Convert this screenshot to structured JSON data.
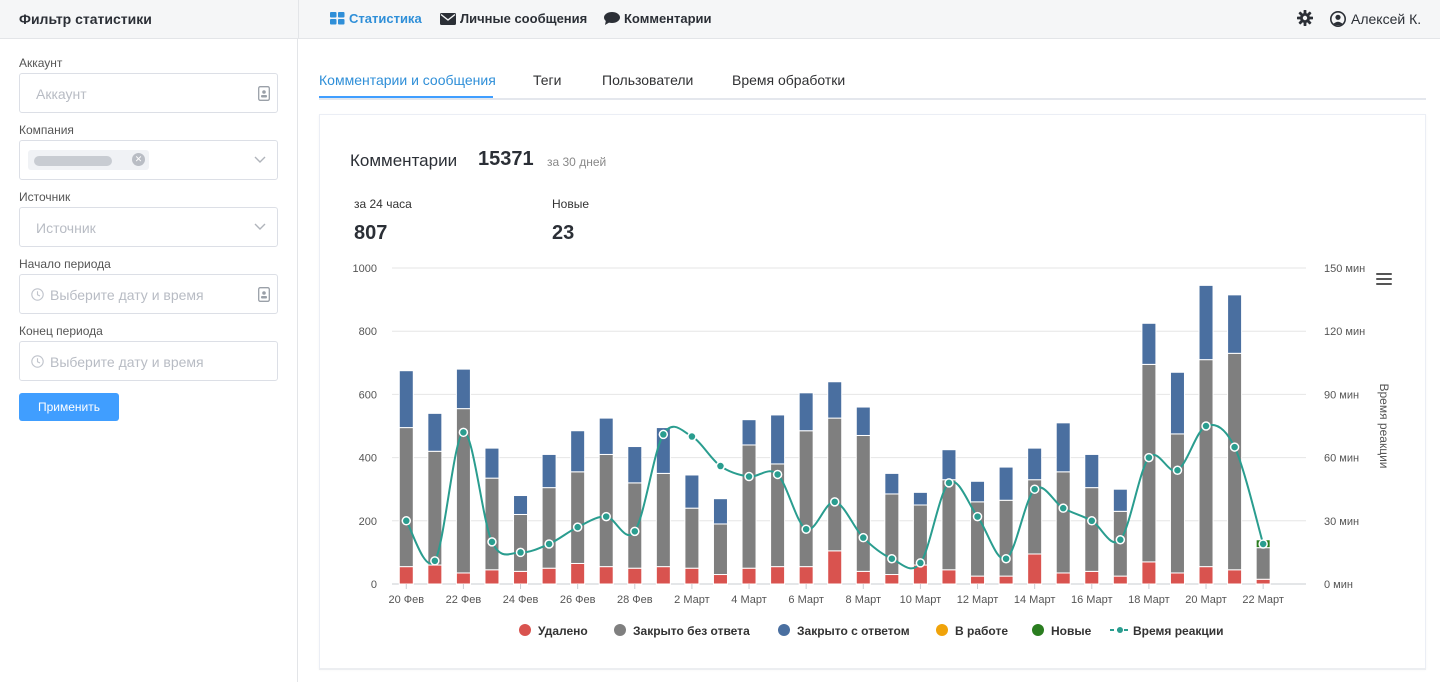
{
  "sidebar_title": "Фильтр статистики",
  "nav": {
    "items": [
      {
        "label": "Статистика",
        "icon": "grid-icon",
        "active": true
      },
      {
        "label": "Личные сообщения",
        "icon": "envelope-icon",
        "active": false
      },
      {
        "label": "Комментарии",
        "icon": "comment-icon",
        "active": false
      }
    ],
    "user_name": "Алексей К."
  },
  "filters": {
    "account": {
      "label": "Аккаунт",
      "placeholder": "Аккаунт"
    },
    "company": {
      "label": "Компания"
    },
    "source": {
      "label": "Источник",
      "placeholder": "Источник"
    },
    "start": {
      "label": "Начало периода",
      "placeholder": "Выберите дату и время"
    },
    "end": {
      "label": "Конец периода",
      "placeholder": "Выберите дату и время"
    },
    "apply_label": "Применить"
  },
  "tabs": [
    "Комментарии и сообщения",
    "Теги",
    "Пользователи",
    "Время обработки"
  ],
  "stats": {
    "title": "Комментарии",
    "total": "15371",
    "period": "за 30 дней",
    "day_label": "за 24 часа",
    "day_value": "807",
    "new_label": "Новые",
    "new_value": "23"
  },
  "colors": {
    "deleted": "#d9534f",
    "closed_no_reply": "#7f7f7f",
    "closed_reply": "#4a6fa0",
    "in_progress": "#f0a30a",
    "new": "#2a7d1f",
    "reaction": "#2a9d8f",
    "accent": "#409eff"
  },
  "chart_data": {
    "type": "bar",
    "stacked": true,
    "categories": [
      "20 Фев",
      "21 Фев",
      "22 Фев",
      "23 Фев",
      "24 Фев",
      "25 Фев",
      "26 Фев",
      "27 Фев",
      "28 Фев",
      "1 Март",
      "2 Март",
      "3 Март",
      "4 Март",
      "5 Март",
      "6 Март",
      "7 Март",
      "8 Март",
      "9 Март",
      "10 Март",
      "11 Март",
      "12 Март",
      "13 Март",
      "14 Март",
      "15 Март",
      "16 Март",
      "17 Март",
      "18 Март",
      "19 Март",
      "20 Март",
      "21 Март",
      "22 Март",
      "23 Март"
    ],
    "x_tick_labels": [
      "20 Фев",
      "22 Фев",
      "24 Фев",
      "26 Фев",
      "28 Фев",
      "2 Март",
      "4 Март",
      "6 Март",
      "8 Март",
      "10 Март",
      "12 Март",
      "14 Март",
      "16 Март",
      "18 Март",
      "20 Март",
      "22 Март"
    ],
    "y_ticks": [
      "0",
      "200",
      "400",
      "600",
      "800",
      "1000"
    ],
    "y2_ticks": [
      "0 мин",
      "30 мин",
      "60 мин",
      "90 мин",
      "120 мин",
      "150 мин"
    ],
    "ylim": [
      0,
      1000
    ],
    "y2lim": [
      0,
      150
    ],
    "y2label": "Время реакции",
    "series": [
      {
        "name": "Удалено",
        "type": "bar",
        "values": [
          55,
          60,
          35,
          45,
          40,
          50,
          65,
          55,
          50,
          55,
          50,
          30,
          50,
          55,
          55,
          105,
          40,
          30,
          60,
          45,
          25,
          25,
          95,
          35,
          40,
          25,
          70,
          35,
          55,
          45,
          15,
          0
        ]
      },
      {
        "name": "Закрыто без ответа",
        "type": "bar",
        "values": [
          440,
          360,
          520,
          290,
          180,
          255,
          290,
          355,
          270,
          295,
          190,
          160,
          390,
          325,
          430,
          420,
          430,
          255,
          190,
          285,
          235,
          240,
          235,
          320,
          265,
          205,
          625,
          440,
          655,
          685,
          100,
          0
        ]
      },
      {
        "name": "Закрыто с ответом",
        "type": "bar",
        "values": [
          180,
          120,
          125,
          95,
          60,
          105,
          130,
          115,
          115,
          145,
          105,
          80,
          80,
          155,
          120,
          115,
          90,
          65,
          40,
          95,
          65,
          105,
          100,
          155,
          105,
          70,
          130,
          195,
          235,
          185,
          0,
          0
        ]
      },
      {
        "name": "В работе",
        "type": "bar",
        "values": [
          0,
          0,
          0,
          0,
          0,
          0,
          0,
          0,
          0,
          0,
          0,
          0,
          0,
          0,
          0,
          0,
          0,
          0,
          0,
          0,
          0,
          0,
          0,
          0,
          0,
          0,
          0,
          0,
          0,
          0,
          0,
          0
        ]
      },
      {
        "name": "Новые",
        "type": "bar",
        "values": [
          0,
          0,
          0,
          0,
          0,
          0,
          0,
          0,
          0,
          0,
          0,
          0,
          0,
          0,
          0,
          0,
          0,
          0,
          0,
          0,
          0,
          0,
          0,
          0,
          0,
          0,
          0,
          0,
          0,
          0,
          25,
          0
        ]
      },
      {
        "name": "Время реакции",
        "type": "line",
        "axis": "y2",
        "values": [
          30,
          11,
          72,
          20,
          15,
          19,
          27,
          32,
          25,
          71,
          70,
          56,
          51,
          52,
          26,
          39,
          22,
          12,
          10,
          48,
          32,
          12,
          45,
          36,
          30,
          21,
          60,
          54,
          75,
          65,
          19,
          null
        ]
      }
    ],
    "legend": [
      "Удалено",
      "Закрыто без ответа",
      "Закрыто с ответом",
      "В работе",
      "Новые",
      "Время реакции"
    ],
    "legend_position": "bottom",
    "grid": true
  }
}
